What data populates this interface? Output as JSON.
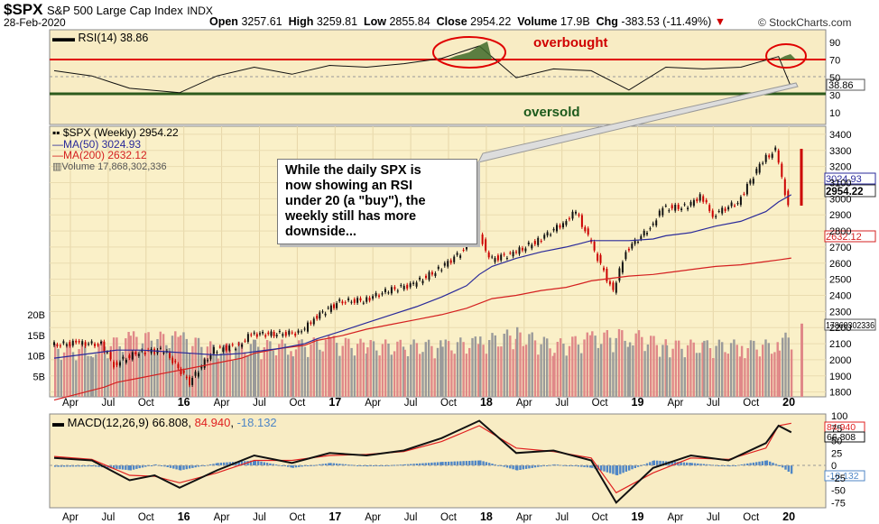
{
  "header": {
    "symbol": "$SPX",
    "name": "S&P 500 Large Cap Index",
    "exchange": "INDX",
    "date": "28-Feb-2020",
    "open_label": "Open",
    "open": "3257.61",
    "high_label": "High",
    "high": "3259.81",
    "low_label": "Low",
    "low": "2855.84",
    "close_label": "Close",
    "close": "2954.22",
    "volume_label": "Volume",
    "volume": "17.9B",
    "chg_label": "Chg",
    "chg": "-383.53 (-11.49%)",
    "source": "© StockCharts.com"
  },
  "colors": {
    "panel_bg": "#f8ecc4",
    "price_bg": "#faf0c8",
    "up_candle": "#111111",
    "down_candle": "#cc0000",
    "ma50": "#2a2a9a",
    "ma200": "#d42020",
    "volume_up": "#9a9a9a",
    "volume_down": "#e08888",
    "rsi_line": "#111111",
    "overbought_line": "#e00000",
    "oversold_line": "#2d5a1d",
    "macd_line": "#111111",
    "signal_line": "#e02020",
    "histogram": "#4f86c6",
    "circle": "#e00000"
  },
  "rsi_panel": {
    "legend": "RSI(14) 38.86",
    "overbought_label": "overbought",
    "oversold_label": "oversold",
    "last_value_label": "38.86",
    "ticks": [
      "90",
      "70",
      "50",
      "30",
      "10"
    ]
  },
  "price_panel": {
    "legend_price": "$SPX (Weekly) 2954.22",
    "legend_ma50": "MA(50) 3024.93",
    "legend_ma200": "MA(200) 2632.12",
    "legend_volume": "Volume 17,868,302,336",
    "ticks": [
      "3400",
      "3300",
      "3200",
      "3100",
      "3000",
      "2900",
      "2800",
      "2700",
      "2600",
      "2500",
      "2400",
      "2300",
      "2200",
      "2100",
      "2000",
      "1900",
      "1800"
    ],
    "volume_ticks": [
      "20B",
      "15B",
      "10B",
      "5B"
    ],
    "label_ma50": "3024.93",
    "label_close": "2954.22",
    "label_ma200": "2632.12",
    "label_volume": "17868302336"
  },
  "macd_panel": {
    "legend_name": "MACD(12,26,9)",
    "legend_macd": "66.808",
    "legend_signal": "84.940",
    "legend_hist": "-18.132",
    "ticks": [
      "100",
      "75",
      "50",
      "25",
      "0",
      "-25",
      "-50",
      "-75"
    ],
    "label_signal": "84.940",
    "label_macd": "66.808",
    "label_hist": "-18.132"
  },
  "x_axis": {
    "labels": [
      "Apr",
      "Jul",
      "Oct",
      "16",
      "Apr",
      "Jul",
      "Oct",
      "17",
      "Apr",
      "Jul",
      "Oct",
      "18",
      "Apr",
      "Jul",
      "Oct",
      "19",
      "Apr",
      "Jul",
      "Oct",
      "20"
    ]
  },
  "annotation": {
    "text": "While the daily SPX is\nnow showing an RSI\nunder 20 (a \"buy\"), the\nweekly still has more\ndownside..."
  },
  "chart_data": [
    {
      "type": "line",
      "title": "RSI(14) 38.86",
      "ylim": [
        0,
        100
      ],
      "overbought": 70,
      "oversold": 30,
      "x": [
        "2015-03",
        "2015-06",
        "2015-09",
        "2016-01",
        "2016-04",
        "2016-07",
        "2016-10",
        "2017-01",
        "2017-04",
        "2017-07",
        "2017-10",
        "2018-01",
        "2018-04",
        "2018-07",
        "2018-10",
        "2019-01",
        "2019-04",
        "2019-07",
        "2019-10",
        "2020-01",
        "2020-02"
      ],
      "series": [
        {
          "values": [
            58,
            52,
            38,
            33,
            52,
            62,
            54,
            64,
            62,
            66,
            72,
            86,
            50,
            60,
            58,
            36,
            62,
            60,
            62,
            74,
            38.86
          ]
        }
      ]
    },
    {
      "type": "line",
      "title": "$SPX (Weekly) 2954.22",
      "ylim": [
        1770,
        3450
      ],
      "x": [
        "2015-03",
        "2015-05",
        "2015-07",
        "2015-08",
        "2015-10",
        "2015-12",
        "2016-02",
        "2016-04",
        "2016-06",
        "2016-07",
        "2016-09",
        "2016-11",
        "2016-12",
        "2017-02",
        "2017-04",
        "2017-06",
        "2017-08",
        "2017-10",
        "2017-12",
        "2018-01",
        "2018-02",
        "2018-04",
        "2018-06",
        "2018-08",
        "2018-09",
        "2018-10",
        "2018-12",
        "2019-01",
        "2019-03",
        "2019-04",
        "2019-06",
        "2019-07",
        "2019-08",
        "2019-10",
        "2019-12",
        "2020-01",
        "2020-02"
      ],
      "series": [
        {
          "name": "$SPX (Weekly) 2954.22",
          "values": [
            2090,
            2105,
            2095,
            1970,
            2050,
            2060,
            1860,
            2060,
            2090,
            2160,
            2160,
            2170,
            2260,
            2360,
            2370,
            2430,
            2470,
            2560,
            2680,
            2850,
            2620,
            2660,
            2740,
            2850,
            2920,
            2760,
            2420,
            2680,
            2820,
            2940,
            2950,
            3020,
            2900,
            2980,
            3240,
            3300,
            2954.22
          ]
        },
        {
          "name": "MA(50) 3024.93",
          "values": [
            2010,
            2030,
            2050,
            2060,
            2060,
            2050,
            2040,
            2030,
            2040,
            2050,
            2070,
            2100,
            2130,
            2180,
            2230,
            2280,
            2330,
            2390,
            2460,
            2530,
            2580,
            2630,
            2670,
            2700,
            2720,
            2740,
            2740,
            2740,
            2750,
            2770,
            2790,
            2810,
            2830,
            2860,
            2920,
            2980,
            3024.93
          ]
        },
        {
          "name": "MA(200) 2632.12",
          "values": [
            1750,
            1790,
            1830,
            1860,
            1890,
            1920,
            1950,
            1980,
            2010,
            2040,
            2070,
            2090,
            2120,
            2150,
            2190,
            2220,
            2250,
            2280,
            2320,
            2350,
            2380,
            2400,
            2430,
            2450,
            2470,
            2490,
            2510,
            2520,
            2530,
            2540,
            2560,
            2570,
            2580,
            2590,
            2610,
            2620,
            2632.12
          ]
        }
      ]
    },
    {
      "type": "bar",
      "title": "Volume 17,868,302,336",
      "ylim": [
        0,
        22
      ],
      "yunit": "B",
      "x": [
        "2015-03",
        "2015-06",
        "2015-09",
        "2016-01",
        "2016-04",
        "2016-07",
        "2016-10",
        "2017-01",
        "2017-04",
        "2017-07",
        "2017-10",
        "2018-01",
        "2018-04",
        "2018-07",
        "2018-10",
        "2019-01",
        "2019-04",
        "2019-07",
        "2019-10",
        "2020-01",
        "2020-02"
      ],
      "series": [
        {
          "name": "Volume 17,868,302,336",
          "values": [
            13,
            13,
            16,
            16,
            13,
            14,
            14,
            15,
            14,
            14,
            14,
            15,
            17,
            14,
            16,
            17,
            14,
            14,
            14,
            14,
            17.87
          ]
        }
      ]
    },
    {
      "type": "line",
      "title": "MACD(12,26,9)",
      "ylim": [
        -85,
        105
      ],
      "x": [
        "2015-03",
        "2015-06",
        "2015-09",
        "2015-11",
        "2016-01",
        "2016-04",
        "2016-07",
        "2016-10",
        "2017-01",
        "2017-04",
        "2017-07",
        "2017-10",
        "2018-01",
        "2018-04",
        "2018-07",
        "2018-10",
        "2018-12",
        "2019-03",
        "2019-06",
        "2019-09",
        "2019-12",
        "2020-01",
        "2020-02"
      ],
      "series": [
        {
          "name": "MACD",
          "values": [
            15,
            10,
            -30,
            -20,
            -45,
            -10,
            20,
            5,
            25,
            20,
            30,
            55,
            90,
            25,
            30,
            10,
            -75,
            -5,
            20,
            10,
            45,
            80,
            66.808
          ]
        },
        {
          "name": "Signal",
          "values": [
            18,
            12,
            -20,
            -22,
            -35,
            -15,
            10,
            10,
            20,
            22,
            28,
            48,
            80,
            35,
            28,
            15,
            -55,
            -15,
            15,
            12,
            35,
            80,
            84.94
          ]
        },
        {
          "name": "Histogram",
          "values": [
            -3,
            -2,
            -10,
            2,
            -10,
            5,
            10,
            -5,
            5,
            -2,
            2,
            7,
            10,
            -10,
            2,
            -5,
            -20,
            10,
            5,
            -2,
            10,
            0,
            -18.132
          ]
        }
      ]
    }
  ]
}
